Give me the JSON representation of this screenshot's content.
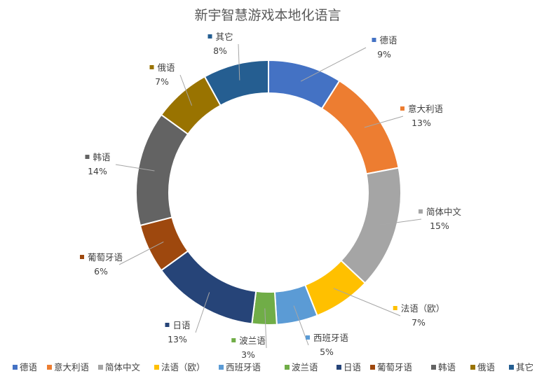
{
  "chart_data": {
    "type": "pie",
    "variant": "donut",
    "title": "新宇智慧游戏本地化语言",
    "legend_position": "bottom",
    "slices": [
      {
        "label": "德语",
        "value": 9,
        "display": "9%",
        "color": "#4472C4"
      },
      {
        "label": "意大利语",
        "value": 13,
        "display": "13%",
        "color": "#ED7D31"
      },
      {
        "label": "简体中文",
        "value": 15,
        "display": "15%",
        "color": "#A5A5A5"
      },
      {
        "label": "法语（欧）",
        "value": 7,
        "display": "7%",
        "color": "#FFC000"
      },
      {
        "label": "西班牙语",
        "value": 5,
        "display": "5%",
        "color": "#5B9BD5"
      },
      {
        "label": "波兰语",
        "value": 3,
        "display": "3%",
        "color": "#70AD47"
      },
      {
        "label": "日语",
        "value": 13,
        "display": "13%",
        "color": "#264478"
      },
      {
        "label": "葡萄牙语",
        "value": 6,
        "display": "6%",
        "color": "#9E480E"
      },
      {
        "label": "韩语",
        "value": 14,
        "display": "14%",
        "color": "#636363"
      },
      {
        "label": "俄语",
        "value": 7,
        "display": "7%",
        "color": "#997300"
      },
      {
        "label": "其它",
        "value": 8,
        "display": "8%",
        "color": "#255E91"
      }
    ]
  }
}
